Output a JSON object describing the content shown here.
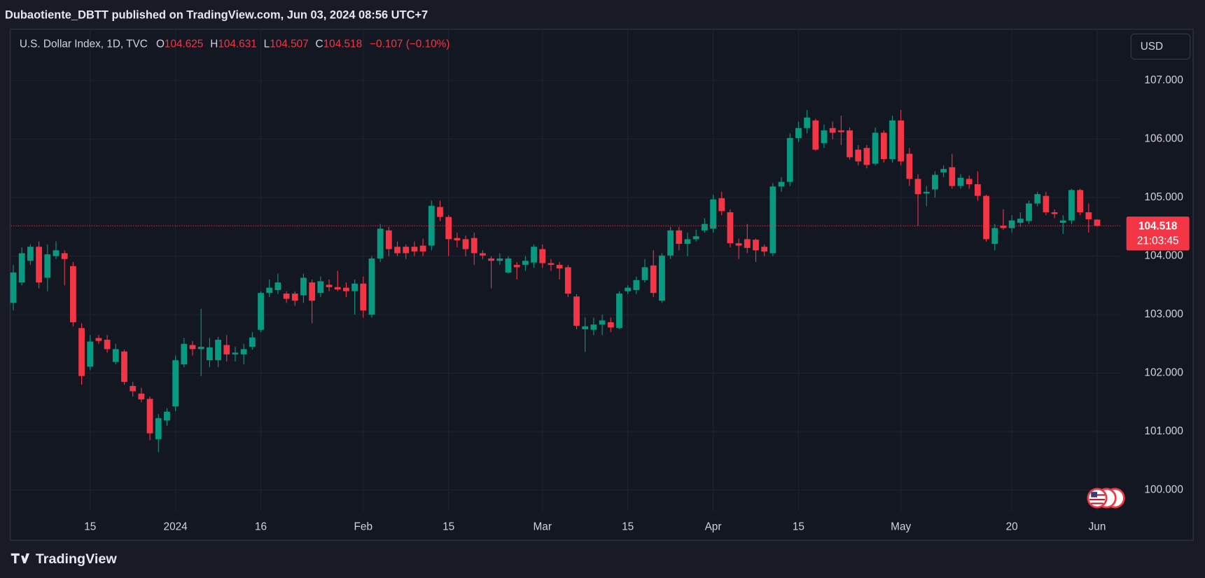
{
  "banner": "Dubaotiente_DBTT published on TradingView.com, Jun 03, 2024 08:56 UTC+7",
  "footer": "TradingView",
  "chart_data": {
    "type": "candlestick",
    "symbol": "U.S. Dollar Index, 1D, TVC",
    "ohlc_keys": [
      "O",
      "H",
      "L",
      "C"
    ],
    "change": "−0.107 (−0.10%)",
    "currency": "USD",
    "countdown": "21:03:45",
    "up_color": "#089981",
    "down_color": "#f23645",
    "grid": true,
    "ylim": [
      99.64,
      107.88
    ],
    "yticks": [
      {
        "value": 100,
        "label": "100.000"
      },
      {
        "value": 101,
        "label": "101.000"
      },
      {
        "value": 102,
        "label": "102.000"
      },
      {
        "value": 103,
        "label": "103.000"
      },
      {
        "value": 104,
        "label": "104.000"
      },
      {
        "value": 105,
        "label": "105.000"
      },
      {
        "value": 106,
        "label": "106.000"
      },
      {
        "value": 107,
        "label": "107.000"
      }
    ],
    "categories": [
      null,
      null,
      null,
      null,
      null,
      null,
      null,
      null,
      null,
      "15",
      null,
      null,
      null,
      null,
      null,
      null,
      null,
      null,
      null,
      "2024",
      null,
      null,
      null,
      null,
      null,
      null,
      null,
      null,
      null,
      "16",
      null,
      null,
      null,
      null,
      null,
      null,
      null,
      null,
      null,
      null,
      null,
      "Feb",
      null,
      null,
      null,
      null,
      null,
      null,
      null,
      null,
      null,
      "15",
      null,
      null,
      null,
      null,
      null,
      null,
      null,
      null,
      null,
      null,
      "Mar",
      null,
      null,
      null,
      null,
      null,
      null,
      null,
      null,
      null,
      "15",
      null,
      null,
      null,
      null,
      null,
      null,
      null,
      null,
      null,
      "Apr",
      null,
      null,
      null,
      null,
      null,
      null,
      null,
      null,
      null,
      "15",
      null,
      null,
      null,
      null,
      null,
      null,
      null,
      null,
      null,
      null,
      null,
      "May",
      null,
      null,
      null,
      null,
      null,
      null,
      null,
      null,
      null,
      null,
      null,
      null,
      "20",
      null,
      null,
      null,
      null,
      null,
      null,
      null,
      null,
      null,
      "Jun"
    ],
    "open": [
      103.2,
      103.55,
      103.92,
      104.16,
      103.63,
      104.0,
      104.05,
      103.83,
      102.77,
      102.11,
      102.6,
      102.57,
      102.19,
      102.37,
      101.78,
      101.65,
      101.56,
      100.87,
      101.19,
      101.43,
      102.15,
      102.48,
      102.41,
      102.22,
      102.22,
      102.48,
      102.32,
      102.32,
      102.45,
      102.74,
      103.37,
      103.42,
      103.36,
      103.36,
      103.33,
      103.55,
      103.37,
      103.51,
      103.47,
      103.46,
      103.4,
      103.53,
      103.0,
      103.96,
      104.44,
      104.16,
      104.16,
      104.16,
      104.18,
      104.18,
      104.84,
      104.67,
      104.31,
      104.29,
      104.31,
      104.05,
      103.96,
      103.92,
      103.72,
      103.85,
      103.85,
      103.89,
      104.12,
      103.88,
      103.85,
      103.81,
      103.31,
      102.75,
      102.74,
      102.83,
      102.87,
      102.77,
      103.4,
      103.42,
      103.59,
      103.84,
      103.24,
      104.01,
      104.44,
      104.21,
      104.29,
      104.44,
      104.47,
      104.99,
      104.75,
      104.22,
      104.29,
      104.28,
      104.16,
      104.05,
      105.19,
      105.27,
      106.02,
      106.19,
      106.32,
      105.93,
      106.19,
      106.15,
      106.15,
      105.82,
      105.85,
      105.58,
      106.11,
      105.66,
      106.32,
      105.75,
      105.32,
      105.07,
      105.14,
      105.43,
      105.52,
      105.2,
      105.32,
      105.23,
      105.03,
      104.21,
      104.52,
      104.48,
      104.57,
      104.6,
      104.9,
      105.03,
      104.75,
      104.57,
      104.61,
      105.13,
      104.75,
      104.625
    ],
    "high": [
      103.85,
      104.15,
      104.2,
      104.25,
      104.2,
      104.25,
      104.1,
      103.9,
      102.85,
      102.65,
      102.65,
      102.65,
      102.5,
      102.4,
      101.85,
      101.75,
      101.6,
      101.3,
      101.4,
      102.3,
      102.6,
      102.55,
      103.1,
      102.6,
      102.62,
      102.65,
      102.45,
      102.5,
      102.7,
      103.4,
      103.6,
      103.7,
      103.4,
      103.4,
      103.7,
      103.6,
      103.65,
      103.6,
      103.75,
      103.55,
      103.6,
      103.65,
      104.0,
      104.55,
      104.5,
      104.25,
      104.2,
      104.25,
      104.3,
      104.95,
      104.95,
      104.7,
      104.4,
      104.35,
      104.4,
      104.1,
      104.0,
      104.05,
      104.0,
      103.9,
      104.0,
      104.2,
      104.2,
      103.95,
      103.9,
      103.85,
      103.35,
      102.95,
      102.95,
      103.0,
      102.95,
      103.4,
      103.5,
      103.65,
      103.95,
      104.1,
      104.05,
      104.5,
      104.5,
      104.4,
      104.45,
      104.65,
      105.05,
      105.1,
      104.8,
      104.3,
      104.55,
      104.3,
      104.2,
      105.25,
      105.35,
      106.1,
      106.3,
      106.5,
      106.35,
      106.25,
      106.3,
      106.4,
      106.2,
      105.9,
      105.9,
      106.2,
      106.15,
      106.4,
      106.5,
      105.85,
      105.4,
      105.2,
      105.45,
      105.55,
      105.75,
      105.4,
      105.38,
      105.45,
      105.05,
      104.55,
      104.8,
      104.7,
      104.75,
      104.95,
      105.1,
      105.1,
      104.8,
      104.7,
      105.15,
      105.15,
      104.9,
      104.631
    ],
    "low": [
      103.07,
      103.5,
      103.85,
      103.45,
      103.4,
      103.95,
      103.5,
      102.8,
      101.8,
      102.05,
      102.5,
      102.35,
      102.15,
      101.8,
      101.6,
      101.5,
      100.85,
      100.65,
      101.1,
      101.35,
      102.1,
      102.3,
      101.95,
      102.1,
      102.1,
      102.2,
      102.2,
      102.15,
      102.4,
      102.7,
      103.3,
      103.35,
      103.2,
      103.15,
      103.2,
      102.85,
      103.3,
      103.4,
      103.4,
      103.3,
      103.0,
      102.95,
      102.95,
      103.9,
      104.0,
      104.0,
      103.95,
      104.0,
      104.0,
      104.1,
      104.6,
      104.0,
      104.15,
      104.0,
      103.85,
      103.95,
      103.45,
      103.85,
      103.7,
      103.6,
      103.75,
      103.8,
      103.8,
      103.75,
      103.6,
      103.3,
      102.75,
      102.36,
      102.65,
      102.65,
      102.7,
      102.75,
      103.35,
      103.35,
      103.55,
      103.3,
      103.2,
      103.95,
      104.1,
      104.0,
      104.25,
      104.4,
      104.4,
      104.7,
      104.15,
      103.95,
      104.05,
      103.9,
      104.0,
      104.0,
      105.1,
      105.2,
      105.95,
      106.1,
      105.8,
      105.85,
      106.0,
      105.9,
      105.65,
      105.55,
      105.5,
      105.55,
      105.6,
      105.6,
      105.55,
      105.2,
      104.52,
      104.85,
      105.0,
      105.35,
      105.15,
      105.15,
      105.15,
      104.95,
      104.25,
      104.1,
      104.45,
      104.4,
      104.5,
      104.55,
      104.85,
      104.7,
      104.65,
      104.38,
      104.55,
      104.7,
      104.4,
      104.507
    ],
    "close": [
      103.72,
      104.05,
      104.16,
      103.55,
      104.03,
      104.1,
      103.95,
      102.87,
      101.95,
      102.54,
      102.55,
      102.41,
      102.41,
      101.85,
      101.69,
      101.55,
      100.97,
      101.23,
      101.34,
      102.22,
      102.5,
      102.41,
      102.45,
      102.44,
      102.57,
      102.32,
      102.35,
      102.41,
      102.61,
      103.37,
      103.46,
      103.55,
      103.27,
      103.24,
      103.63,
      103.24,
      103.57,
      103.47,
      103.43,
      103.4,
      103.53,
      103.07,
      103.96,
      104.47,
      104.12,
      104.05,
      104.05,
      104.08,
      104.08,
      104.86,
      104.67,
      104.29,
      104.27,
      104.12,
      104.05,
      104.01,
      103.92,
      103.96,
      103.96,
      103.81,
      103.92,
      104.16,
      103.88,
      103.85,
      103.79,
      103.36,
      102.81,
      102.8,
      102.83,
      102.9,
      102.78,
      103.36,
      103.46,
      103.59,
      103.81,
      103.37,
      104.01,
      104.44,
      104.21,
      104.29,
      104.34,
      104.55,
      104.97,
      104.77,
      104.22,
      104.18,
      104.14,
      104.1,
      104.08,
      105.19,
      105.27,
      106.02,
      106.19,
      106.37,
      105.82,
      106.15,
      106.11,
      106.12,
      105.69,
      105.62,
      105.56,
      106.11,
      105.66,
      106.32,
      105.62,
      105.32,
      105.06,
      105.1,
      105.39,
      105.49,
      105.2,
      105.34,
      105.23,
      105.03,
      104.29,
      104.48,
      104.48,
      104.61,
      104.64,
      104.9,
      105.06,
      104.75,
      104.72,
      104.61,
      105.13,
      104.75,
      104.63,
      104.518
    ]
  }
}
